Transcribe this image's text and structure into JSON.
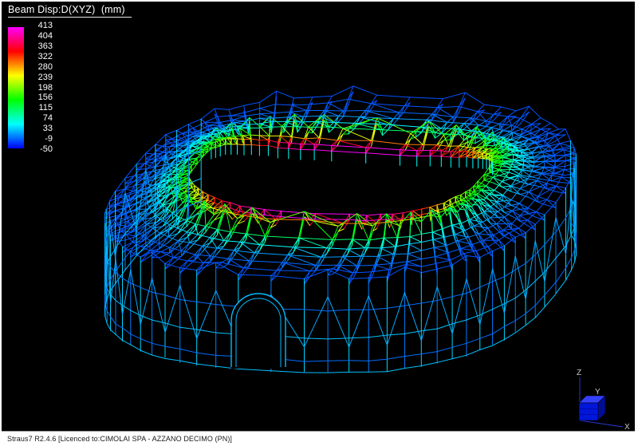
{
  "header": {
    "title": "Beam Disp:D(XYZ)  (mm)"
  },
  "legend": {
    "min": -50,
    "max": 413,
    "values": [
      413,
      404,
      363,
      322,
      280,
      239,
      198,
      156,
      115,
      74,
      33,
      -9,
      -50
    ]
  },
  "axis_triad": {
    "x_label": "X",
    "y_label": "Y",
    "z_label": "Z"
  },
  "status_bar": {
    "text": "Straus7 R2.4.6 [Licenced to:CIMOLAI SPA - AZZANO DECIMO (PN)]"
  },
  "model": {
    "displayed_quantity": "Beam Disp:D(XYZ)",
    "units": "mm",
    "range_mm": [
      -50,
      413
    ]
  },
  "colors": {
    "viewport_bg": "#000000",
    "text": "#ffffff",
    "colormap_min": "#0000ff",
    "colormap_max": "#ff00ff",
    "axis_line": "#2a35d0",
    "axis_label": "#c8c8c8",
    "cube_front": "#0016d9",
    "cube_top": "#3340ff",
    "cube_side": "#000d96",
    "statusbar_text": "#1a1a1a"
  }
}
